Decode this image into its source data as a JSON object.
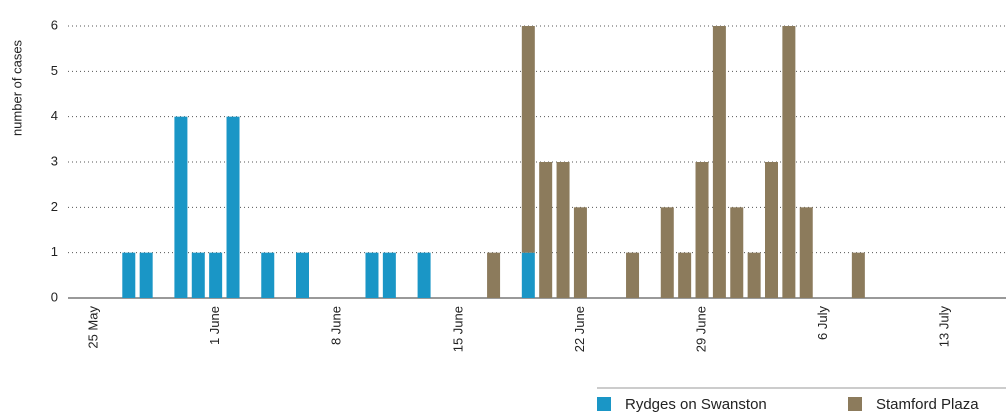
{
  "chart_data": {
    "type": "bar",
    "stacked": true,
    "y_label": "number of cases",
    "categories": [
      null,
      "25 May",
      null,
      null,
      null,
      null,
      null,
      null,
      "1 June",
      null,
      null,
      null,
      null,
      null,
      null,
      "8 June",
      null,
      null,
      null,
      null,
      null,
      null,
      "15 June",
      null,
      null,
      null,
      null,
      null,
      null,
      "22 June",
      null,
      null,
      null,
      null,
      null,
      null,
      "29 June",
      null,
      null,
      null,
      null,
      null,
      null,
      "6 July",
      null,
      null,
      null,
      null,
      null,
      null,
      "13 July",
      null,
      null,
      null
    ],
    "series": [
      {
        "name": "Rydges on Swanston",
        "color": "#1a96c6",
        "values": [
          0,
          0,
          0,
          1,
          1,
          0,
          4,
          1,
          1,
          4,
          0,
          1,
          0,
          1,
          0,
          0,
          0,
          1,
          1,
          0,
          1,
          0,
          0,
          0,
          0,
          0,
          1,
          0,
          0,
          0,
          0,
          0,
          0,
          0,
          0,
          0,
          0,
          0,
          0,
          0,
          0,
          0,
          0,
          0,
          0,
          0,
          0,
          0,
          0,
          0,
          0,
          0,
          0,
          0
        ]
      },
      {
        "name": "Stamford Plaza",
        "color": "#8c7b5c",
        "values": [
          0,
          0,
          0,
          0,
          0,
          0,
          0,
          0,
          0,
          0,
          0,
          0,
          0,
          0,
          0,
          0,
          0,
          0,
          0,
          0,
          0,
          0,
          0,
          0,
          1,
          0,
          5,
          3,
          3,
          2,
          0,
          0,
          1,
          0,
          2,
          1,
          3,
          6,
          2,
          1,
          3,
          6,
          2,
          0,
          0,
          1,
          0,
          0,
          0,
          0,
          0,
          0,
          0,
          0
        ]
      }
    ],
    "ylim": [
      0,
      6
    ],
    "yticks": [
      0,
      1,
      2,
      3,
      4,
      5,
      6
    ],
    "grid": true,
    "legend": "bottom-right"
  }
}
